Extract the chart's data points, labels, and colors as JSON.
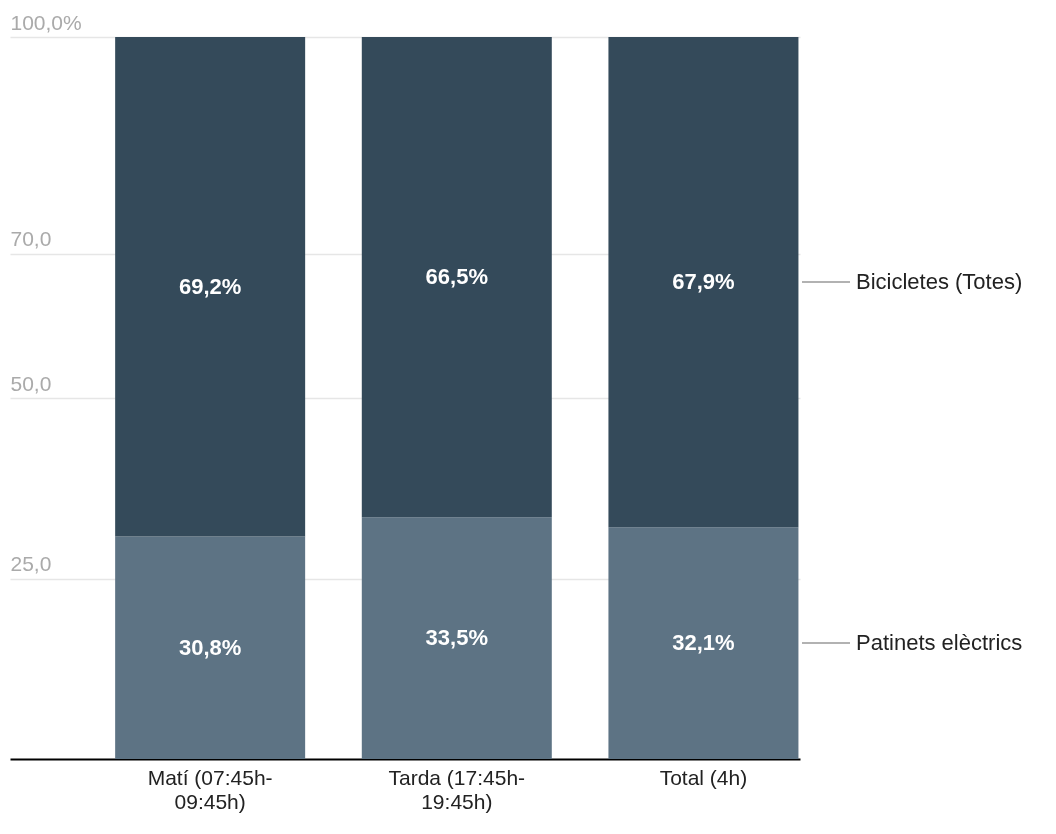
{
  "chart_data": {
    "type": "bar",
    "stacked": true,
    "categories": [
      "Matí (07:45h-09:45h)",
      "Tarda (17:45h-19:45h)",
      "Total (4h)"
    ],
    "series": [
      {
        "name": "Patinets elèctrics",
        "color": "#5d7384",
        "values": [
          30.8,
          33.5,
          32.1
        ],
        "value_labels": [
          "30,8%",
          "33,5%",
          "32,1%"
        ]
      },
      {
        "name": "Bicicletes (Totes)",
        "color": "#344a5a",
        "values": [
          69.2,
          66.5,
          67.9
        ],
        "value_labels": [
          "69,2%",
          "66,5%",
          "67,9%"
        ]
      }
    ],
    "ylim": [
      0,
      100
    ],
    "yticks": [
      {
        "value": 25,
        "label": "25,0"
      },
      {
        "value": 50,
        "label": "50,0"
      },
      {
        "value": 70,
        "label": "70,0"
      },
      {
        "value": 100,
        "label": "100,0%"
      }
    ],
    "grid": "y",
    "legend": "right"
  }
}
